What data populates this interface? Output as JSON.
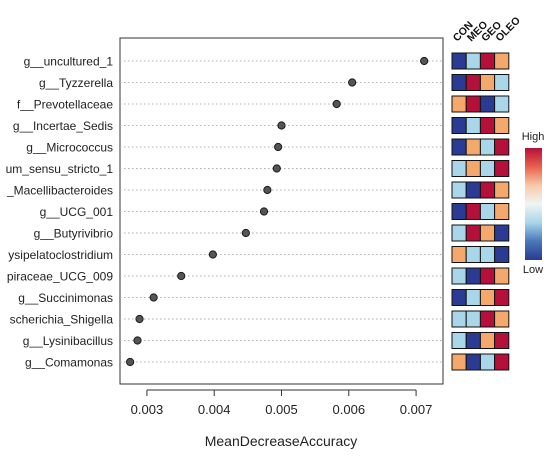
{
  "chart_data": {
    "type": "scatter",
    "xlabel": "MeanDecreaseAccuracy",
    "xlim": [
      0.0026,
      0.0074
    ],
    "xticks": [
      0.003,
      0.004,
      0.005,
      0.006,
      0.007
    ],
    "xtick_labels": [
      "0.003",
      "0.004",
      "0.005",
      "0.006",
      "0.007"
    ],
    "grid": "horizontal dotted",
    "categories": [
      "g__uncultured_1",
      "g__Tyzzerella",
      "f__Prevotellaceae",
      "g__Incertae_Sedis",
      "g__Micrococcus",
      "um_sensu_stricto_1",
      "_Macellibacteroides",
      "g__UCG_001",
      "g__Butyrivibrio",
      "ysipelatoclostridium",
      "piraceae_UCG_009",
      "g__Succinimonas",
      "scherichia_Shigella",
      "g__Lysinibacillus",
      "g__Comamonas"
    ],
    "values": [
      0.00712,
      0.00605,
      0.00582,
      0.005,
      0.00495,
      0.00493,
      0.00479,
      0.00474,
      0.00447,
      0.00398,
      0.00351,
      0.0031,
      0.00289,
      0.00286,
      0.00275
    ],
    "heatmap": {
      "columns": [
        "CON",
        "MEO",
        "GEO",
        "OLEO"
      ],
      "legend_high": "High",
      "legend_low": "Low",
      "palette": {
        "blue": "#2b3a92",
        "lightblue": "#a9d6e8",
        "red": "#b5103a",
        "orange": "#f5a86b"
      },
      "rows": [
        [
          "blue",
          "lightblue",
          "red",
          "orange"
        ],
        [
          "blue",
          "red",
          "orange",
          "lightblue"
        ],
        [
          "orange",
          "red",
          "blue",
          "lightblue"
        ],
        [
          "blue",
          "lightblue",
          "red",
          "orange"
        ],
        [
          "blue",
          "orange",
          "lightblue",
          "red"
        ],
        [
          "lightblue",
          "orange",
          "lightblue",
          "red"
        ],
        [
          "lightblue",
          "blue",
          "red",
          "orange"
        ],
        [
          "blue",
          "red",
          "lightblue",
          "orange"
        ],
        [
          "lightblue",
          "red",
          "orange",
          "blue"
        ],
        [
          "orange",
          "lightblue",
          "lightblue",
          "blue"
        ],
        [
          "lightblue",
          "blue",
          "red",
          "orange"
        ],
        [
          "blue",
          "lightblue",
          "orange",
          "red"
        ],
        [
          "lightblue",
          "lightblue",
          "red",
          "orange"
        ],
        [
          "lightblue",
          "blue",
          "orange",
          "red"
        ],
        [
          "orange",
          "blue",
          "lightblue",
          "red"
        ]
      ],
      "gradient": [
        "#b5103a",
        "#e8604a",
        "#f7c9a8",
        "#f0f4f5",
        "#a9d6e8",
        "#4a78b8",
        "#2b3a92"
      ]
    }
  }
}
